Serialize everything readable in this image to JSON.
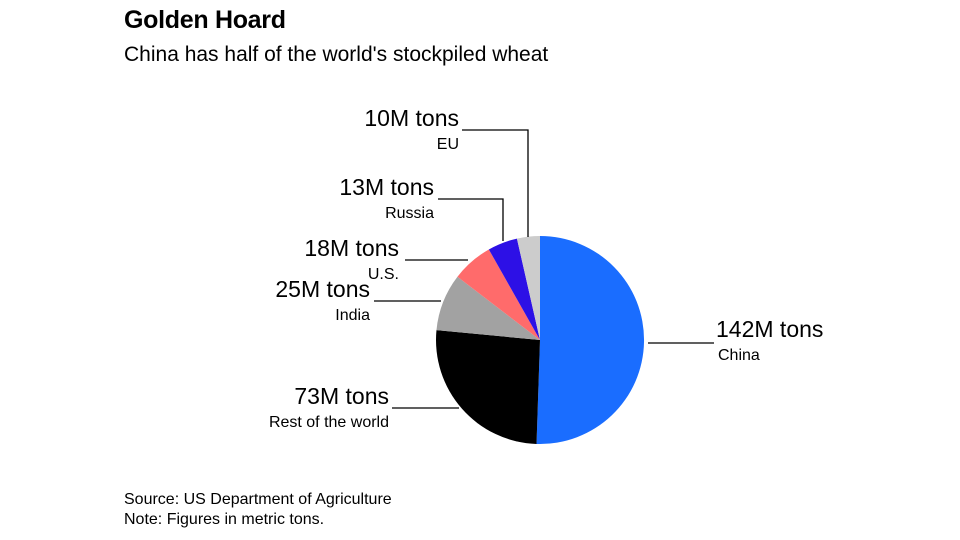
{
  "title": "Golden Hoard",
  "subtitle": "China has half of the world's stockpiled wheat",
  "chart_data": {
    "type": "pie",
    "unit": "M tons",
    "start_angle_deg": 0,
    "direction": "clockwise",
    "slices": [
      {
        "label": "China",
        "value": 142,
        "value_label": "142M tons",
        "color": "#1a6dff"
      },
      {
        "label": "Rest of the world",
        "value": 73,
        "value_label": "73M tons",
        "color": "#000000"
      },
      {
        "label": "India",
        "value": 25,
        "value_label": "25M tons",
        "color": "#a2a2a2"
      },
      {
        "label": "U.S.",
        "value": 18,
        "value_label": "18M tons",
        "color": "#ff6b6b"
      },
      {
        "label": "Russia",
        "value": 13,
        "value_label": "13M tons",
        "color": "#2d10e6"
      },
      {
        "label": "EU",
        "value": 10,
        "value_label": "10M tons",
        "color": "#cccccc"
      }
    ]
  },
  "footer": {
    "source": "Source: US Department of Agriculture",
    "note": "Note: Figures in metric tons."
  }
}
